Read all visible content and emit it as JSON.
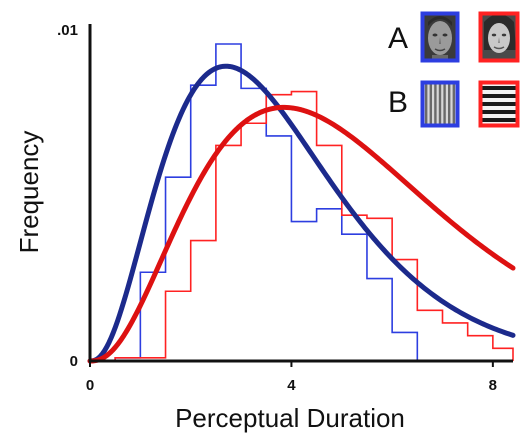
{
  "chart_data": {
    "type": "histogram-with-fitted-curves",
    "xlabel": "Perceptual Duration",
    "ylabel": "Frequency",
    "xlim": [
      0,
      8.4
    ],
    "ylim": [
      0,
      0.01
    ],
    "x_ticks": [
      {
        "value": 0,
        "label": "0"
      },
      {
        "value": 4,
        "label": "4"
      },
      {
        "value": 8,
        "label": "8"
      }
    ],
    "y_ticks": [
      {
        "value": 0,
        "label": "0"
      },
      {
        "value": 0.01,
        "label": ".01"
      }
    ],
    "bin_edges": [
      0.0,
      0.5,
      1.0,
      1.5,
      2.0,
      2.5,
      3.0,
      3.5,
      4.0,
      4.5,
      5.0,
      5.5,
      6.0,
      6.5,
      7.0,
      7.5,
      8.0,
      8.4
    ],
    "series": [
      {
        "color": "#2d3ee0",
        "curve_color": "#1c2a8c",
        "hist_values": [
          0.0,
          0.0001,
          0.0028,
          0.0058,
          0.0087,
          0.01,
          0.0086,
          0.0071,
          0.0044,
          0.0048,
          0.004,
          0.0026,
          0.0009,
          0.0,
          0.0,
          0.0,
          0.0
        ],
        "fit_mode": 2.7,
        "fit_peak": 0.0093
      },
      {
        "color": "#ff2222",
        "curve_color": "#dd1111",
        "hist_values": [
          0.0,
          0.0001,
          0.0001,
          0.0022,
          0.0038,
          0.0068,
          0.0075,
          0.0084,
          0.0085,
          0.0068,
          0.0046,
          0.0045,
          0.0032,
          0.0016,
          0.0012,
          0.0008,
          0.0004
        ],
        "fit_mode": 3.85,
        "fit_peak": 0.008
      }
    ],
    "legend": {
      "position": "top-right",
      "rows": [
        {
          "letter": "A",
          "items": [
            {
              "color": "#2d3ee0",
              "icon": "face-photo-icon"
            },
            {
              "color": "#ff2222",
              "icon": "face-photo-icon"
            }
          ]
        },
        {
          "letter": "B",
          "items": [
            {
              "color": "#2d3ee0",
              "icon": "vertical-grating-icon"
            },
            {
              "color": "#ff2222",
              "icon": "horizontal-grating-icon"
            }
          ]
        }
      ]
    },
    "grid": false
  }
}
